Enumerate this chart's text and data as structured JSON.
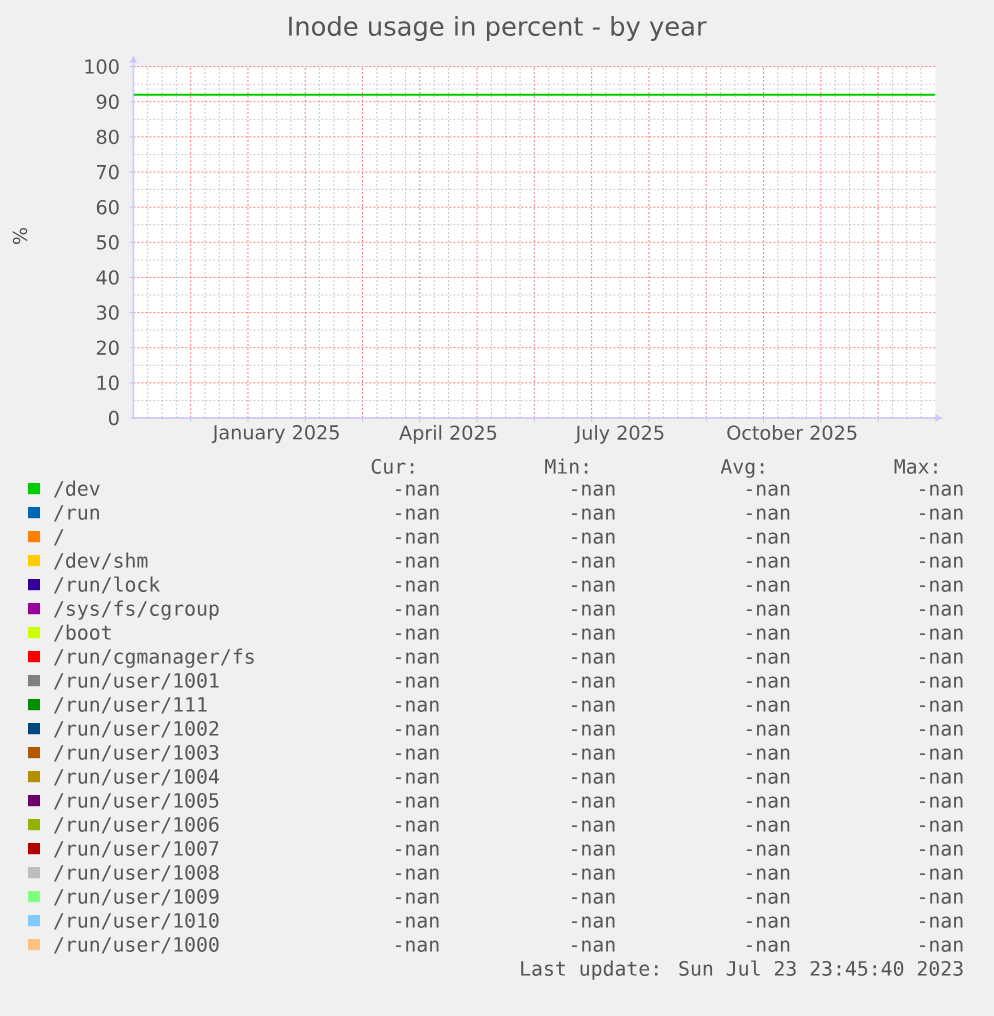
{
  "chart_data": {
    "type": "line",
    "title": "Inode usage in percent - by year",
    "ylabel": "%",
    "categories": [
      null,
      null,
      "January 2025",
      null,
      null,
      "April 2025",
      null,
      null,
      "July 2025",
      null,
      null,
      "October 2025",
      null,
      null
    ],
    "series": [
      {
        "name": "/dev",
        "color": "#00cc00",
        "values": [
          null,
          null,
          null,
          null,
          null,
          null,
          null,
          null,
          null,
          null,
          null,
          null,
          null,
          null
        ]
      },
      {
        "name": "/run",
        "color": "#0066b3",
        "values": [
          null,
          null,
          null,
          null,
          null,
          null,
          null,
          null,
          null,
          null,
          null,
          null,
          null,
          null
        ]
      },
      {
        "name": "/",
        "color": "#ff8000",
        "values": [
          null,
          null,
          null,
          null,
          null,
          null,
          null,
          null,
          null,
          null,
          null,
          null,
          null,
          null
        ]
      },
      {
        "name": "/dev/shm",
        "color": "#ffcc00",
        "values": [
          null,
          null,
          null,
          null,
          null,
          null,
          null,
          null,
          null,
          null,
          null,
          null,
          null,
          null
        ]
      },
      {
        "name": "/run/lock",
        "color": "#330099",
        "values": [
          null,
          null,
          null,
          null,
          null,
          null,
          null,
          null,
          null,
          null,
          null,
          null,
          null,
          null
        ]
      },
      {
        "name": "/sys/fs/cgroup",
        "color": "#990099",
        "values": [
          null,
          null,
          null,
          null,
          null,
          null,
          null,
          null,
          null,
          null,
          null,
          null,
          null,
          null
        ]
      },
      {
        "name": "/boot",
        "color": "#ccff00",
        "values": [
          null,
          null,
          null,
          null,
          null,
          null,
          null,
          null,
          null,
          null,
          null,
          null,
          null,
          null
        ]
      },
      {
        "name": "/run/cgmanager/fs",
        "color": "#ff0000",
        "values": [
          null,
          null,
          null,
          null,
          null,
          null,
          null,
          null,
          null,
          null,
          null,
          null,
          null,
          null
        ]
      },
      {
        "name": "/run/user/1001",
        "color": "#808080",
        "values": [
          null,
          null,
          null,
          null,
          null,
          null,
          null,
          null,
          null,
          null,
          null,
          null,
          null,
          null
        ]
      },
      {
        "name": "/run/user/111",
        "color": "#008f00",
        "values": [
          null,
          null,
          null,
          null,
          null,
          null,
          null,
          null,
          null,
          null,
          null,
          null,
          null,
          null
        ]
      },
      {
        "name": "/run/user/1002",
        "color": "#00487d",
        "values": [
          null,
          null,
          null,
          null,
          null,
          null,
          null,
          null,
          null,
          null,
          null,
          null,
          null,
          null
        ]
      },
      {
        "name": "/run/user/1003",
        "color": "#b35a00",
        "values": [
          null,
          null,
          null,
          null,
          null,
          null,
          null,
          null,
          null,
          null,
          null,
          null,
          null,
          null
        ]
      },
      {
        "name": "/run/user/1004",
        "color": "#b38f00",
        "values": [
          null,
          null,
          null,
          null,
          null,
          null,
          null,
          null,
          null,
          null,
          null,
          null,
          null,
          null
        ]
      },
      {
        "name": "/run/user/1005",
        "color": "#6b006b",
        "values": [
          null,
          null,
          null,
          null,
          null,
          null,
          null,
          null,
          null,
          null,
          null,
          null,
          null,
          null
        ]
      },
      {
        "name": "/run/user/1006",
        "color": "#8fb300",
        "values": [
          null,
          null,
          null,
          null,
          null,
          null,
          null,
          null,
          null,
          null,
          null,
          null,
          null,
          null
        ]
      },
      {
        "name": "/run/user/1007",
        "color": "#b30000",
        "values": [
          null,
          null,
          null,
          null,
          null,
          null,
          null,
          null,
          null,
          null,
          null,
          null,
          null,
          null
        ]
      },
      {
        "name": "/run/user/1008",
        "color": "#bebebe",
        "values": [
          null,
          null,
          null,
          null,
          null,
          null,
          null,
          null,
          null,
          null,
          null,
          null,
          null,
          null
        ]
      },
      {
        "name": "/run/user/1009",
        "color": "#80ff80",
        "values": [
          null,
          null,
          null,
          null,
          null,
          null,
          null,
          null,
          null,
          null,
          null,
          null,
          null,
          null
        ]
      },
      {
        "name": "/run/user/1010",
        "color": "#80c9ff",
        "values": [
          null,
          null,
          null,
          null,
          null,
          null,
          null,
          null,
          null,
          null,
          null,
          null,
          null,
          null
        ]
      },
      {
        "name": "/run/user/1000",
        "color": "#ffc080",
        "values": [
          null,
          null,
          null,
          null,
          null,
          null,
          null,
          null,
          null,
          null,
          null,
          null,
          null,
          null
        ]
      }
    ],
    "ylim": [
      0,
      100
    ],
    "yticks": [
      0,
      10,
      20,
      30,
      40,
      50,
      60,
      70,
      80,
      90,
      100
    ],
    "ref_lines": [
      {
        "axis": "y",
        "value": 92,
        "color": "#00cc00"
      }
    ],
    "grid": true,
    "legend": "bottom",
    "annotations": [
      "Cur:",
      "Min:",
      "Avg:",
      "Max:",
      "-nan",
      "-nan",
      "-nan",
      "-nan",
      "-nan",
      "-nan",
      "-nan",
      "-nan",
      "-nan",
      "-nan",
      "-nan",
      "-nan",
      "-nan",
      "-nan",
      "-nan",
      "-nan",
      "-nan",
      "-nan",
      "-nan",
      "-nan",
      "-nan",
      "-nan",
      "-nan",
      "-nan",
      "-nan",
      "-nan",
      "-nan",
      "-nan",
      "-nan",
      "-nan",
      "-nan",
      "-nan",
      "-nan",
      "-nan",
      "-nan",
      "-nan",
      "-nan",
      "-nan",
      "-nan",
      "-nan",
      "-nan",
      "-nan",
      "-nan",
      "-nan",
      "-nan",
      "-nan",
      "-nan",
      "-nan",
      "-nan",
      "-nan",
      "-nan",
      "-nan",
      "-nan",
      "-nan",
      "-nan",
      "-nan",
      "-nan",
      "-nan",
      "-nan",
      "-nan",
      "-nan",
      "-nan",
      "-nan",
      "-nan",
      "-nan",
      "-nan",
      "-nan",
      "-nan",
      "-nan",
      "-nan",
      "-nan",
      "-nan",
      "-nan",
      "-nan",
      "-nan",
      "-nan",
      "-nan",
      "-nan",
      "-nan",
      "-nan",
      "Last update: Sun Jul 23 23:45:40 2023"
    ]
  }
}
